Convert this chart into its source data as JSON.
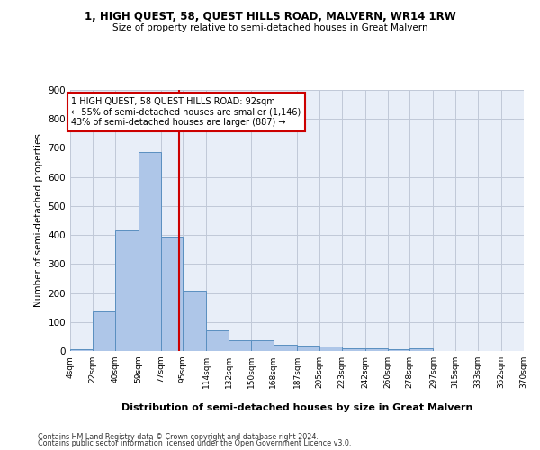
{
  "title": "1, HIGH QUEST, 58, QUEST HILLS ROAD, MALVERN, WR14 1RW",
  "subtitle": "Size of property relative to semi-detached houses in Great Malvern",
  "xlabel": "Distribution of semi-detached houses by size in Great Malvern",
  "ylabel": "Number of semi-detached properties",
  "footer_line1": "Contains HM Land Registry data © Crown copyright and database right 2024.",
  "footer_line2": "Contains public sector information licensed under the Open Government Licence v3.0.",
  "annotation_line1": "1 HIGH QUEST, 58 QUEST HILLS ROAD: 92sqm",
  "annotation_line2": "← 55% of semi-detached houses are smaller (1,146)",
  "annotation_line3": "43% of semi-detached houses are larger (887) →",
  "property_size": 92,
  "bin_edges": [
    4,
    22,
    40,
    59,
    77,
    95,
    114,
    132,
    150,
    168,
    187,
    205,
    223,
    242,
    260,
    278,
    297,
    315,
    333,
    352,
    370
  ],
  "bar_values": [
    7,
    138,
    415,
    685,
    395,
    207,
    72,
    36,
    36,
    22,
    20,
    14,
    10,
    10,
    5,
    10,
    0,
    0,
    0,
    0
  ],
  "bar_color": "#aec6e8",
  "bar_edge_color": "#5a8fc0",
  "vline_color": "#cc0000",
  "vline_x": 92,
  "ylim": [
    0,
    900
  ],
  "yticks": [
    0,
    100,
    200,
    300,
    400,
    500,
    600,
    700,
    800,
    900
  ],
  "grid_color": "#c0c8d8",
  "background_color": "#e8eef8",
  "annotation_box_color": "#ffffff",
  "annotation_box_edge": "#cc0000"
}
